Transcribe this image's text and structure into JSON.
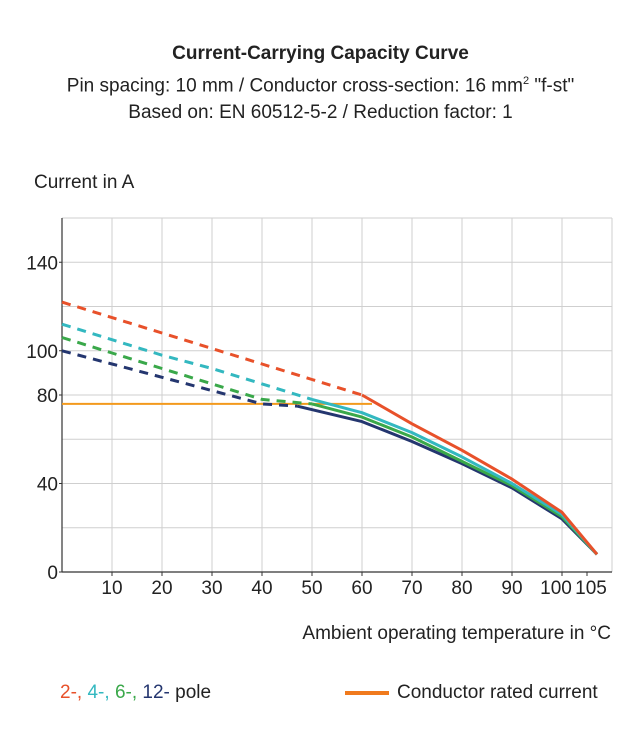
{
  "chart_data": {
    "type": "line",
    "title": "Current-Carrying Capacity Curve",
    "subtitle_1": "Pin spacing: 10 mm / Conductor cross-section: 16 mm",
    "subtitle_1_sup": "2",
    "subtitle_1_end": " \"f-st\"",
    "subtitle_2": "Based on: EN 60512-5-2 / Reduction factor: 1",
    "ylabel": "Current in A",
    "xlabel": "Ambient operating temperature in °C",
    "xlim": [
      0,
      110
    ],
    "ylim": [
      0,
      160
    ],
    "x_ticks": [
      "10",
      "20",
      "30",
      "40",
      "50",
      "60",
      "70",
      "80",
      "90",
      "100",
      "105"
    ],
    "y_ticks": [
      "0",
      "40",
      "80",
      "100",
      "140"
    ],
    "grid": true,
    "series": [
      {
        "name": "2-",
        "color": "#e8512a",
        "dashed_x": [
          0,
          10,
          20,
          30,
          40,
          50,
          60
        ],
        "dashed_y": [
          122,
          115,
          108,
          101,
          94,
          87,
          80
        ],
        "solid_x": [
          60,
          70,
          80,
          90,
          100,
          107
        ],
        "solid_y": [
          80,
          67,
          55,
          42,
          27,
          8
        ]
      },
      {
        "name": "4-",
        "color": "#33b8c0",
        "dashed_x": [
          0,
          10,
          20,
          30,
          40,
          50
        ],
        "dashed_y": [
          112,
          105,
          98,
          92,
          85,
          78
        ],
        "solid_x": [
          50,
          60,
          70,
          80,
          90,
          100,
          107
        ],
        "solid_y": [
          78,
          72,
          63,
          52,
          40,
          26,
          8
        ]
      },
      {
        "name": "6-",
        "color": "#3aa84a",
        "dashed_x": [
          0,
          10,
          20,
          30,
          40,
          50
        ],
        "dashed_y": [
          106,
          99,
          92,
          85,
          78,
          76
        ],
        "solid_x": [
          50,
          60,
          70,
          80,
          90,
          100,
          107
        ],
        "solid_y": [
          76,
          70,
          61,
          50,
          39,
          25,
          8
        ]
      },
      {
        "name": "12-",
        "color": "#24366f",
        "dashed_x": [
          0,
          10,
          20,
          30,
          40,
          47
        ],
        "dashed_y": [
          100,
          94,
          88,
          82,
          76,
          75
        ],
        "solid_x": [
          47,
          60,
          70,
          80,
          90,
          100,
          107
        ],
        "solid_y": [
          75,
          68,
          59,
          49,
          38,
          24,
          8
        ]
      }
    ],
    "rated_current": {
      "name": "Conductor rated current",
      "color": "#f39a1d",
      "value": 76,
      "x_end": 62
    },
    "legend": {
      "poles": [
        "2-,",
        "4-,",
        "6-,",
        "12-"
      ],
      "pole_suffix": "pole",
      "rated": "Conductor rated current"
    }
  }
}
